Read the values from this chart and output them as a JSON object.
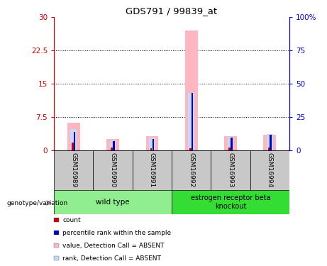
{
  "title": "GDS791 / 99839_at",
  "samples": [
    "GSM16989",
    "GSM16990",
    "GSM16991",
    "GSM16992",
    "GSM16993",
    "GSM16994"
  ],
  "ylim_left": [
    0,
    30
  ],
  "ylim_right": [
    0,
    100
  ],
  "yticks_left": [
    0,
    7.5,
    15,
    22.5,
    30
  ],
  "yticks_right": [
    0,
    25,
    50,
    75,
    100
  ],
  "ytick_labels_left": [
    "0",
    "7.5",
    "15",
    "22.5",
    "30"
  ],
  "ytick_labels_right": [
    "0",
    "25",
    "50",
    "75",
    "100%"
  ],
  "value_absent": [
    6.2,
    2.6,
    3.2,
    27.0,
    3.2,
    3.5
  ],
  "rank_absent": [
    4.8,
    2.3,
    2.9,
    13.0,
    3.0,
    3.7
  ],
  "count": [
    1.8,
    0.6,
    0.4,
    0.4,
    0.6,
    0.6
  ],
  "percentile": [
    4.2,
    2.0,
    2.6,
    13.0,
    2.8,
    3.5
  ],
  "color_value_absent": "#FFB6C1",
  "color_rank_absent": "#C8D8F8",
  "color_count": "#CC0000",
  "color_percentile": "#0000CC",
  "left_axis_color": "#CC0000",
  "right_axis_color": "#0000CC",
  "legend_items": [
    {
      "label": "count",
      "color": "#CC0000"
    },
    {
      "label": "percentile rank within the sample",
      "color": "#0000CC"
    },
    {
      "label": "value, Detection Call = ABSENT",
      "color": "#FFB6C1"
    },
    {
      "label": "rank, Detection Call = ABSENT",
      "color": "#C8D8F8"
    }
  ],
  "group1_label": "wild type",
  "group1_color": "#90EE90",
  "group2_label": "estrogen receptor beta\nknockout",
  "group2_color": "#33DD33",
  "gray_color": "#C8C8C8",
  "genotype_label": "genotype/variation"
}
